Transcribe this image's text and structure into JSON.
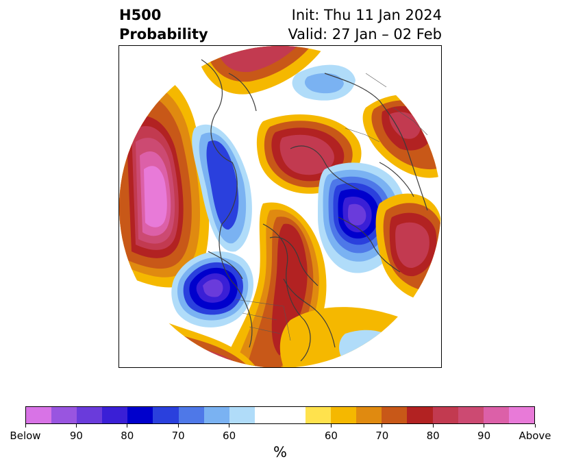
{
  "header": {
    "title_line1": "H500",
    "title_line2": "Probability",
    "init_label": "Init: Thu 11 Jan 2024",
    "valid_label": "Valid: 27 Jan – 02 Feb"
  },
  "colorbar": {
    "unit": "%",
    "colors": [
      "#d873e6",
      "#9955e0",
      "#6a3bdb",
      "#3a1fd6",
      "#0000cc",
      "#2a40dd",
      "#4e78e8",
      "#7ab2f2",
      "#b0dcf9",
      "#ffffff",
      "#ffffff",
      "#ffe24d",
      "#f5b800",
      "#e08a10",
      "#c85818",
      "#b22222",
      "#c23a50",
      "#cc4a72",
      "#dc60a8",
      "#e87ad8"
    ],
    "ticks": [
      {
        "label": "Below",
        "index": 0
      },
      {
        "label": "90",
        "index": 2
      },
      {
        "label": "80",
        "index": 4
      },
      {
        "label": "70",
        "index": 6
      },
      {
        "label": "60",
        "index": 8
      },
      {
        "label": "60",
        "index": 12
      },
      {
        "label": "70",
        "index": 14
      },
      {
        "label": "80",
        "index": 16
      },
      {
        "label": "90",
        "index": 18
      },
      {
        "label": "Above",
        "index": 20
      }
    ]
  },
  "map": {
    "projection": "north-polar-stereographic",
    "anomalies": [
      {
        "name": "pacific-above",
        "sign": "above",
        "level": 100
      },
      {
        "name": "western-north-america-below",
        "sign": "below",
        "level": 85
      },
      {
        "name": "northeast-pacific-below",
        "sign": "below",
        "level": 90
      },
      {
        "name": "siberia-below",
        "sign": "below",
        "level": 90
      },
      {
        "name": "arctic-russia-above",
        "sign": "above",
        "level": 85
      },
      {
        "name": "east-asia-above",
        "sign": "above",
        "level": 85
      },
      {
        "name": "greenland-above",
        "sign": "above",
        "level": 85
      },
      {
        "name": "north-atlantic-above",
        "sign": "above",
        "level": 80
      }
    ]
  }
}
